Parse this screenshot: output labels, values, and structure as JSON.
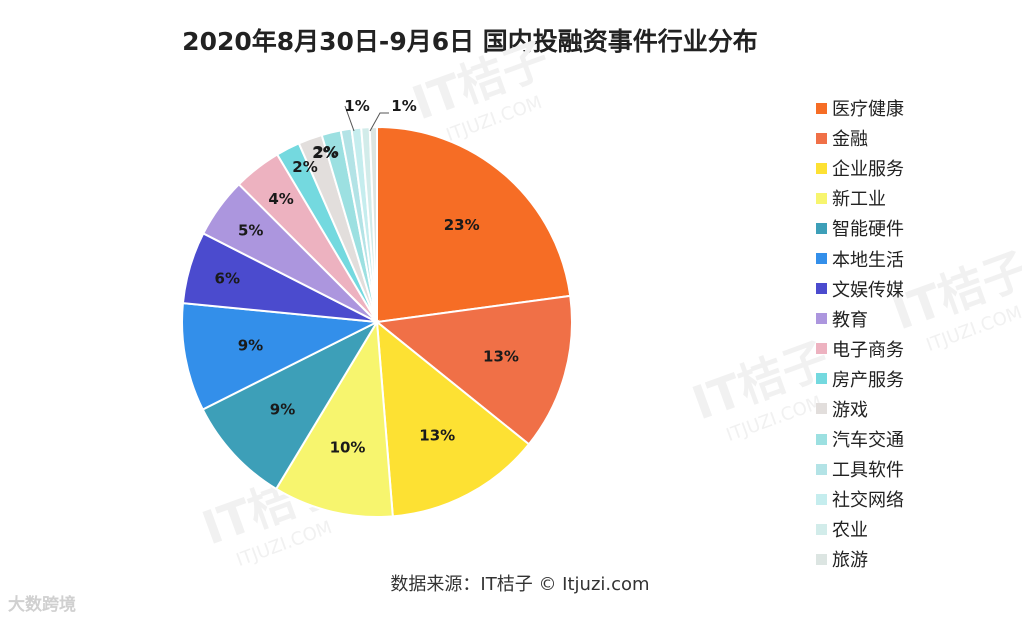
{
  "chart_data": {
    "type": "pie",
    "title": "2020年8月30日-9月6日 国内投融资事件行业分布",
    "source": "数据来源：IT桔子 © Itjuzi.com",
    "slices": [
      {
        "label": "医疗健康",
        "value": 23,
        "display": "23%",
        "color": "#F66D25"
      },
      {
        "label": "金融",
        "value": 13,
        "display": "13%",
        "color": "#F07047"
      },
      {
        "label": "企业服务",
        "value": 13,
        "display": "13%",
        "color": "#FDE133"
      },
      {
        "label": "新工业",
        "value": 10,
        "display": "10%",
        "color": "#F7F56E"
      },
      {
        "label": "智能硬件",
        "value": 9,
        "display": "9%",
        "color": "#3D9FB8"
      },
      {
        "label": "本地生活",
        "value": 9,
        "display": "9%",
        "color": "#338FEA"
      },
      {
        "label": "文娱传媒",
        "value": 6,
        "display": "6%",
        "color": "#4B4BCE"
      },
      {
        "label": "教育",
        "value": 5,
        "display": "5%",
        "color": "#AC96DE"
      },
      {
        "label": "电子商务",
        "value": 4,
        "display": "4%",
        "color": "#EDB2C0"
      },
      {
        "label": "房产服务",
        "value": 2,
        "display": "2%",
        "color": "#74D9DF"
      },
      {
        "label": "游戏",
        "value": 2,
        "display": "2%",
        "color": "#E2DEDC"
      },
      {
        "label": "汽车交通",
        "value": 1.6,
        "display": "2%",
        "color": "#9CE0E1"
      },
      {
        "label": "工具软件",
        "value": 0.9,
        "display": "1%",
        "color": "#B3E3E6"
      },
      {
        "label": "社交网络",
        "value": 0.8,
        "display": "",
        "color": "#C5EDEE"
      },
      {
        "label": "农业",
        "value": 0.7,
        "display": "1%",
        "color": "#D2ECEA"
      },
      {
        "label": "旅游",
        "value": 0.6,
        "display": "",
        "color": "#DCE5E2"
      }
    ]
  },
  "watermark": {
    "brand": "IT桔子",
    "domain": "ITJUZI.COM",
    "corner": "大数跨境"
  }
}
